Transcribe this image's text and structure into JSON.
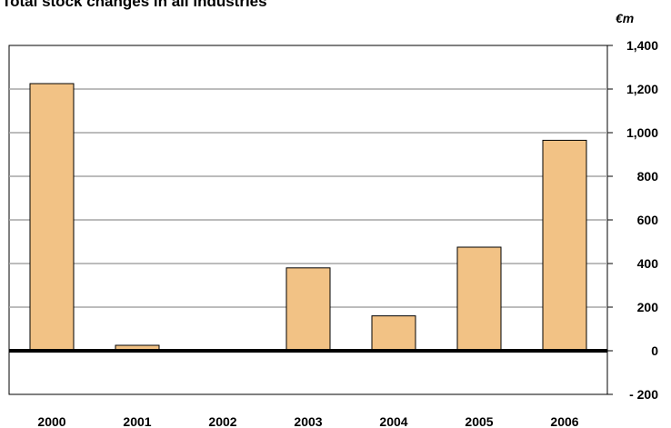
{
  "chart_data": {
    "type": "bar",
    "title": "Total stock changes in all industries",
    "unit": "€m",
    "categories": [
      "2000",
      "2001",
      "2002",
      "2003",
      "2004",
      "2005",
      "2006"
    ],
    "values": [
      1225,
      25,
      0,
      380,
      160,
      475,
      965
    ],
    "y_ticks": [
      1400,
      1200,
      1000,
      800,
      600,
      400,
      200,
      0,
      -200
    ],
    "y_tick_labels": [
      "1,400",
      "1,200",
      "1,000",
      "800",
      "600",
      "400",
      "200",
      "0",
      "- 200"
    ],
    "ylim": [
      -200,
      1400
    ],
    "grid": true,
    "y_axis_side": "right",
    "bar_color": "#F2C285"
  }
}
